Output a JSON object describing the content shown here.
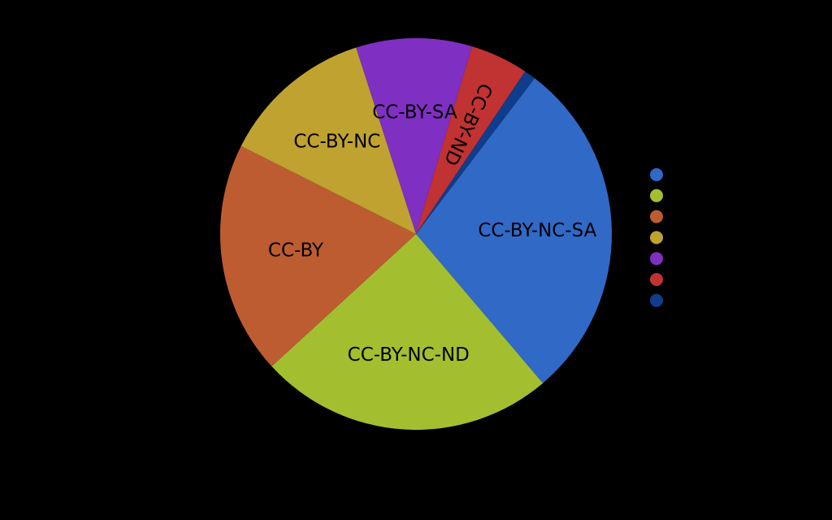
{
  "chart_data": {
    "type": "pie",
    "title": "",
    "start": "top-right",
    "direction": "clockwise",
    "legend_position": "right",
    "slices": [
      {
        "label": "CC-BY-NC-SA",
        "value": 29.7,
        "color": "#3169c6"
      },
      {
        "label": "CC-BY-NC-ND",
        "value": 25.5,
        "color": "#a3bf30"
      },
      {
        "label": "CC-BY",
        "value": 20.1,
        "color": "#be5c31"
      },
      {
        "label": "CC-BY-NC",
        "value": 13.2,
        "color": "#bfa230"
      },
      {
        "label": "CC-BY-SA",
        "value": 10.0,
        "color": "#7f2fc2"
      },
      {
        "label": "CC-BY-ND",
        "value": 5.0,
        "color": "#c13232"
      },
      {
        "label": "",
        "value": 1.0,
        "color": "#0f3d8c"
      }
    ]
  }
}
